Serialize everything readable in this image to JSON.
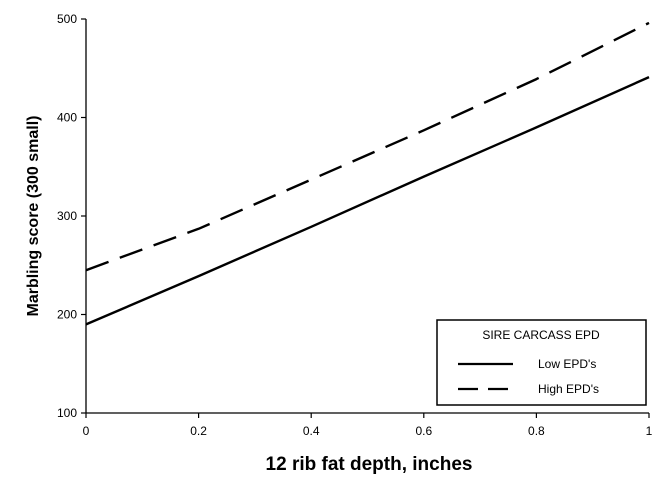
{
  "chart_data": {
    "type": "line",
    "title": "",
    "xlabel": "12 rib fat depth, inches",
    "ylabel": "Marbling score (300 small)",
    "xlim": [
      0,
      1
    ],
    "ylim": [
      100,
      500
    ],
    "x_ticks": [
      "0",
      "0.2",
      "0.4",
      "0.6",
      "0.8",
      "1"
    ],
    "y_ticks": [
      "100",
      "200",
      "300",
      "400",
      "500"
    ],
    "grid": false,
    "legend": {
      "title": "SIRE CARCASS EPD",
      "placement": "bottom-right"
    },
    "series": [
      {
        "name": "Low EPD's",
        "style": "solid",
        "x": [
          0,
          0.2,
          0.4,
          0.6,
          0.8,
          1.0
        ],
        "y": [
          190,
          239,
          289,
          340,
          390,
          441
        ]
      },
      {
        "name": "High EPD's",
        "style": "dashed",
        "x": [
          0,
          0.2,
          0.4,
          0.6,
          0.8,
          1.0
        ],
        "y": [
          245,
          287,
          337,
          387,
          439,
          496
        ]
      }
    ]
  }
}
